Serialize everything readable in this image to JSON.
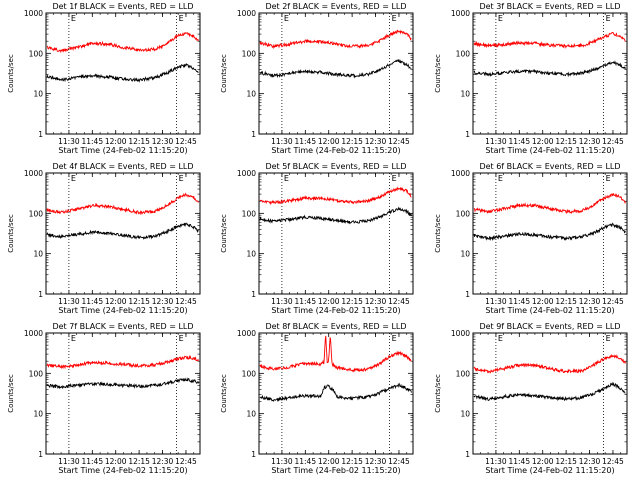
{
  "figure": {
    "background": "#ffffff",
    "series_colors": {
      "events": "#000000",
      "lld": "#ff0000"
    }
  },
  "chart_data": [
    {
      "type": "line",
      "title": "Det 1f BLACK = Events, RED = LLD",
      "xlabel": "Start Time (24-Feb-02 11:15:20)",
      "ylabel": "Counts/sec",
      "xlim": [
        "11:15:20",
        "12:54:00"
      ],
      "ylim": [
        1,
        1000
      ],
      "yscale": "log",
      "xticks": [
        "11:30",
        "11:45",
        "12:00",
        "12:15",
        "12:30",
        "12:45"
      ],
      "yticks": [
        "1",
        "10",
        "100",
        "1000"
      ],
      "markers": [
        {
          "time": "11:30",
          "label": "E"
        },
        {
          "time": "12:39",
          "label": "E"
        }
      ],
      "series": [
        {
          "role": "events",
          "color": "#000000",
          "x": [
            "11:16",
            "11:25",
            "11:35",
            "11:45",
            "11:55",
            "12:05",
            "12:15",
            "12:25",
            "12:32",
            "12:40",
            "12:45",
            "12:50",
            "12:53"
          ],
          "y": [
            27,
            22,
            25,
            28,
            26,
            23,
            22,
            25,
            32,
            45,
            52,
            42,
            34
          ]
        },
        {
          "role": "lld",
          "color": "#ff0000",
          "x": [
            "11:16",
            "11:25",
            "11:35",
            "11:45",
            "11:55",
            "12:05",
            "12:15",
            "12:25",
            "12:32",
            "12:40",
            "12:45",
            "12:50",
            "12:53"
          ],
          "y": [
            140,
            115,
            140,
            175,
            170,
            140,
            120,
            125,
            170,
            275,
            320,
            260,
            200
          ]
        }
      ]
    },
    {
      "type": "line",
      "title": "Det 2f BLACK = Events, RED = LLD",
      "xlabel": "Start Time (24-Feb-02 11:15:20)",
      "ylabel": "Counts/sec",
      "xlim": [
        "11:15:20",
        "12:54:00"
      ],
      "ylim": [
        1,
        1000
      ],
      "yscale": "log",
      "xticks": [
        "11:30",
        "11:45",
        "12:00",
        "12:15",
        "12:30",
        "12:45"
      ],
      "yticks": [
        "1",
        "10",
        "100",
        "1000"
      ],
      "markers": [
        {
          "time": "11:30",
          "label": "E"
        },
        {
          "time": "12:39",
          "label": "E"
        }
      ],
      "series": [
        {
          "role": "events",
          "color": "#000000",
          "x": [
            "11:16",
            "11:25",
            "11:35",
            "11:45",
            "11:55",
            "12:05",
            "12:15",
            "12:25",
            "12:32",
            "12:40",
            "12:45",
            "12:50",
            "12:53"
          ],
          "y": [
            33,
            28,
            32,
            36,
            34,
            30,
            28,
            30,
            38,
            55,
            65,
            52,
            42
          ]
        },
        {
          "role": "lld",
          "color": "#ff0000",
          "x": [
            "11:16",
            "11:25",
            "11:35",
            "11:45",
            "11:55",
            "12:05",
            "12:15",
            "12:25",
            "12:32",
            "12:40",
            "12:45",
            "12:50",
            "12:53"
          ],
          "y": [
            180,
            150,
            170,
            200,
            195,
            170,
            150,
            155,
            200,
            300,
            360,
            300,
            220
          ]
        }
      ]
    },
    {
      "type": "line",
      "title": "Det 3f BLACK = Events, RED = LLD",
      "xlabel": "Start Time (24-Feb-02 11:15:20)",
      "ylabel": "Counts/sec",
      "xlim": [
        "11:15:20",
        "12:54:00"
      ],
      "ylim": [
        1,
        1000
      ],
      "yscale": "log",
      "xticks": [
        "11:30",
        "11:45",
        "12:00",
        "12:15",
        "12:30",
        "12:45"
      ],
      "yticks": [
        "1",
        "10",
        "100",
        "1000"
      ],
      "markers": [
        {
          "time": "11:30",
          "label": "E"
        },
        {
          "time": "12:39",
          "label": "E"
        }
      ],
      "series": [
        {
          "role": "events",
          "color": "#000000",
          "x": [
            "11:16",
            "11:25",
            "11:35",
            "11:45",
            "11:55",
            "12:05",
            "12:15",
            "12:25",
            "12:32",
            "12:40",
            "12:45",
            "12:50",
            "12:53"
          ],
          "y": [
            33,
            30,
            33,
            36,
            35,
            32,
            30,
            32,
            38,
            52,
            62,
            50,
            42
          ]
        },
        {
          "role": "lld",
          "color": "#ff0000",
          "x": [
            "11:16",
            "11:25",
            "11:35",
            "11:45",
            "11:55",
            "12:05",
            "12:15",
            "12:25",
            "12:32",
            "12:40",
            "12:45",
            "12:50",
            "12:53"
          ],
          "y": [
            175,
            155,
            165,
            180,
            175,
            160,
            150,
            155,
            190,
            260,
            310,
            260,
            200
          ]
        }
      ]
    },
    {
      "type": "line",
      "title": "Det 4f BLACK = Events, RED = LLD",
      "xlabel": "Start Time (24-Feb-02 11:15:20)",
      "ylabel": "Counts/sec",
      "xlim": [
        "11:15:20",
        "12:54:00"
      ],
      "ylim": [
        1,
        1000
      ],
      "yscale": "log",
      "xticks": [
        "11:30",
        "11:45",
        "12:00",
        "12:15",
        "12:30",
        "12:45"
      ],
      "yticks": [
        "1",
        "10",
        "100",
        "1000"
      ],
      "markers": [
        {
          "time": "11:30",
          "label": "E"
        },
        {
          "time": "12:39",
          "label": "E"
        }
      ],
      "series": [
        {
          "role": "events",
          "color": "#000000",
          "x": [
            "11:16",
            "11:25",
            "11:35",
            "11:45",
            "11:55",
            "12:05",
            "12:15",
            "12:25",
            "12:32",
            "12:40",
            "12:45",
            "12:50",
            "12:53"
          ],
          "y": [
            30,
            26,
            30,
            34,
            32,
            28,
            25,
            27,
            34,
            48,
            55,
            45,
            36
          ]
        },
        {
          "role": "lld",
          "color": "#ff0000",
          "x": [
            "11:16",
            "11:25",
            "11:35",
            "11:45",
            "11:55",
            "12:05",
            "12:15",
            "12:25",
            "12:32",
            "12:40",
            "12:45",
            "12:50",
            "12:53"
          ],
          "y": [
            120,
            105,
            125,
            155,
            150,
            125,
            105,
            110,
            150,
            240,
            290,
            250,
            190
          ]
        }
      ]
    },
    {
      "type": "line",
      "title": "Det 5f BLACK = Events, RED = LLD",
      "xlabel": "Start Time (24-Feb-02 11:15:20)",
      "ylabel": "Counts/sec",
      "xlim": [
        "11:15:20",
        "12:54:00"
      ],
      "ylim": [
        1,
        1000
      ],
      "yscale": "log",
      "xticks": [
        "11:30",
        "11:45",
        "12:00",
        "12:15",
        "12:30",
        "12:45"
      ],
      "yticks": [
        "1",
        "10",
        "100",
        "1000"
      ],
      "markers": [
        {
          "time": "11:30",
          "label": "E"
        },
        {
          "time": "12:39",
          "label": "E"
        }
      ],
      "series": [
        {
          "role": "events",
          "color": "#000000",
          "x": [
            "11:16",
            "11:25",
            "11:35",
            "11:45",
            "11:55",
            "12:05",
            "12:15",
            "12:25",
            "12:32",
            "12:40",
            "12:45",
            "12:50",
            "12:53"
          ],
          "y": [
            72,
            62,
            70,
            80,
            76,
            66,
            60,
            65,
            80,
            110,
            130,
            110,
            90
          ]
        },
        {
          "role": "lld",
          "color": "#ff0000",
          "x": [
            "11:16",
            "11:25",
            "11:35",
            "11:45",
            "11:55",
            "12:05",
            "12:15",
            "12:25",
            "12:32",
            "12:40",
            "12:45",
            "12:50",
            "12:53"
          ],
          "y": [
            200,
            185,
            205,
            240,
            235,
            210,
            190,
            200,
            250,
            360,
            420,
            360,
            270
          ]
        }
      ]
    },
    {
      "type": "line",
      "title": "Det 6f BLACK = Events, RED = LLD",
      "xlabel": "Start Time (24-Feb-02 11:15:20)",
      "ylabel": "Counts/sec",
      "xlim": [
        "11:15:20",
        "12:54:00"
      ],
      "ylim": [
        1,
        1000
      ],
      "yscale": "log",
      "xticks": [
        "11:30",
        "11:45",
        "12:00",
        "12:15",
        "12:30",
        "12:45"
      ],
      "yticks": [
        "1",
        "10",
        "100",
        "1000"
      ],
      "markers": [
        {
          "time": "11:30",
          "label": "E"
        },
        {
          "time": "12:39",
          "label": "E"
        }
      ],
      "series": [
        {
          "role": "events",
          "color": "#000000",
          "x": [
            "11:16",
            "11:25",
            "11:35",
            "11:45",
            "11:55",
            "12:05",
            "12:15",
            "12:25",
            "12:32",
            "12:40",
            "12:45",
            "12:50",
            "12:53"
          ],
          "y": [
            28,
            24,
            27,
            31,
            29,
            26,
            24,
            26,
            32,
            45,
            52,
            43,
            34
          ]
        },
        {
          "role": "lld",
          "color": "#ff0000",
          "x": [
            "11:16",
            "11:25",
            "11:35",
            "11:45",
            "11:55",
            "12:05",
            "12:15",
            "12:25",
            "12:32",
            "12:40",
            "12:45",
            "12:50",
            "12:53"
          ],
          "y": [
            125,
            110,
            130,
            160,
            155,
            130,
            110,
            115,
            155,
            245,
            290,
            250,
            190
          ]
        }
      ]
    },
    {
      "type": "line",
      "title": "Det 7f BLACK = Events, RED = LLD",
      "xlabel": "Start Time (24-Feb-02 11:15:20)",
      "ylabel": "Counts/sec",
      "xlim": [
        "11:15:20",
        "12:54:00"
      ],
      "ylim": [
        1,
        1000
      ],
      "yscale": "log",
      "xticks": [
        "11:30",
        "11:45",
        "12:00",
        "12:15",
        "12:30",
        "12:45"
      ],
      "yticks": [
        "1",
        "10",
        "100",
        "1000"
      ],
      "markers": [
        {
          "time": "11:30",
          "label": "E"
        },
        {
          "time": "12:39",
          "label": "E"
        }
      ],
      "series": [
        {
          "role": "events",
          "color": "#000000",
          "x": [
            "11:16",
            "11:25",
            "11:35",
            "11:45",
            "11:55",
            "12:05",
            "12:15",
            "12:25",
            "12:32",
            "12:40",
            "12:45",
            "12:50",
            "12:53"
          ],
          "y": [
            50,
            46,
            50,
            55,
            53,
            50,
            48,
            50,
            56,
            66,
            70,
            65,
            60
          ]
        },
        {
          "role": "lld",
          "color": "#ff0000",
          "x": [
            "11:16",
            "11:25",
            "11:35",
            "11:45",
            "11:55",
            "12:05",
            "12:15",
            "12:25",
            "12:32",
            "12:40",
            "12:45",
            "12:50",
            "12:53"
          ],
          "y": [
            160,
            145,
            160,
            185,
            180,
            165,
            155,
            160,
            185,
            230,
            250,
            235,
            215
          ]
        }
      ]
    },
    {
      "type": "line",
      "title": "Det 8f BLACK = Events, RED = LLD",
      "xlabel": "Start Time (24-Feb-02 11:15:20)",
      "ylabel": "Counts/sec",
      "xlim": [
        "11:15:20",
        "12:54:00"
      ],
      "ylim": [
        1,
        1000
      ],
      "yscale": "log",
      "xticks": [
        "11:30",
        "11:45",
        "12:00",
        "12:15",
        "12:30",
        "12:45"
      ],
      "yticks": [
        "1",
        "10",
        "100",
        "1000"
      ],
      "markers": [
        {
          "time": "11:30",
          "label": "E"
        },
        {
          "time": "12:39",
          "label": "E"
        }
      ],
      "series": [
        {
          "role": "events",
          "color": "#000000",
          "x": [
            "11:16",
            "11:25",
            "11:35",
            "11:45",
            "11:55",
            "11:57",
            "12:00",
            "12:03",
            "12:05",
            "12:15",
            "12:25",
            "12:32",
            "12:40",
            "12:45",
            "12:50",
            "12:53"
          ],
          "y": [
            26,
            22,
            25,
            28,
            27,
            45,
            48,
            38,
            26,
            24,
            26,
            32,
            45,
            52,
            42,
            34
          ]
        },
        {
          "role": "lld",
          "color": "#ff0000",
          "x": [
            "11:16",
            "11:25",
            "11:35",
            "11:45",
            "11:55",
            "11:57",
            "11:58",
            "11:59",
            "12:00",
            "12:01",
            "12:02",
            "12:03",
            "12:05",
            "12:15",
            "12:25",
            "12:32",
            "12:40",
            "12:45",
            "12:50",
            "12:53"
          ],
          "y": [
            150,
            125,
            145,
            175,
            170,
            190,
            1000,
            190,
            210,
            1000,
            180,
            160,
            140,
            120,
            125,
            170,
            275,
            320,
            260,
            200
          ]
        }
      ]
    },
    {
      "type": "line",
      "title": "Det 9f BLACK = Events, RED = LLD",
      "xlabel": "Start Time (24-Feb-02 11:15:20)",
      "ylabel": "Counts/sec",
      "xlim": [
        "11:15:20",
        "12:54:00"
      ],
      "ylim": [
        1,
        1000
      ],
      "yscale": "log",
      "xticks": [
        "11:30",
        "11:45",
        "12:00",
        "12:15",
        "12:30",
        "12:45"
      ],
      "yticks": [
        "1",
        "10",
        "100",
        "1000"
      ],
      "markers": [
        {
          "time": "11:30",
          "label": "E"
        },
        {
          "time": "12:39",
          "label": "E"
        }
      ],
      "series": [
        {
          "role": "events",
          "color": "#000000",
          "x": [
            "11:16",
            "11:25",
            "11:35",
            "11:45",
            "11:55",
            "12:05",
            "12:15",
            "12:25",
            "12:32",
            "12:40",
            "12:45",
            "12:50",
            "12:53"
          ],
          "y": [
            27,
            23,
            26,
            30,
            28,
            25,
            23,
            25,
            31,
            44,
            55,
            42,
            34
          ]
        },
        {
          "role": "lld",
          "color": "#ff0000",
          "x": [
            "11:16",
            "11:25",
            "11:35",
            "11:45",
            "11:55",
            "12:05",
            "12:15",
            "12:25",
            "12:32",
            "12:40",
            "12:45",
            "12:50",
            "12:53"
          ],
          "y": [
            130,
            110,
            130,
            160,
            155,
            130,
            110,
            115,
            155,
            240,
            280,
            240,
            185
          ]
        }
      ]
    }
  ]
}
